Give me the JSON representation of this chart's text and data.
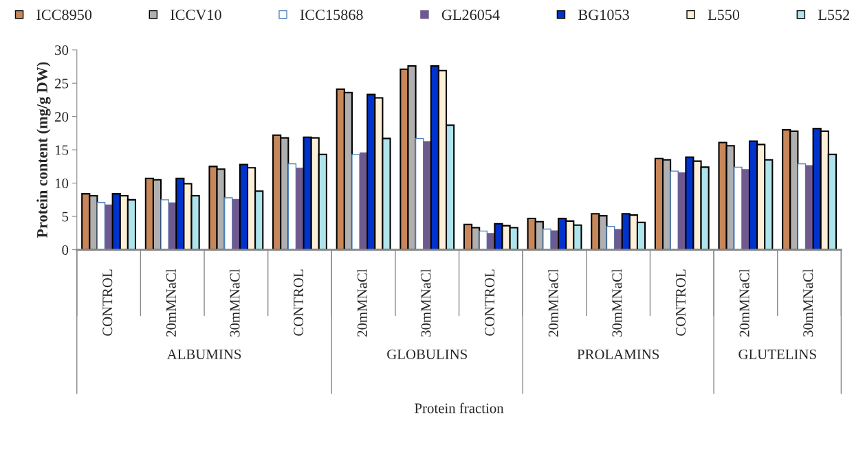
{
  "chart_data": {
    "type": "bar",
    "ylabel": "Protein content (mg/g DW)",
    "categories": [
      "CONTROL",
      "20mMNaCl",
      "30mMNaCl",
      "CONTROL",
      "20mMNaCl",
      "30mMNaCl",
      "CONTROL",
      "20mMNaCl",
      "30mMNaCl",
      "CONTROL",
      "20mMNaCl",
      "30mMNaCl"
    ],
    "series": [
      {
        "name": "ICC8950",
        "color": "#c8875a",
        "values": [
          8.4,
          10.7,
          12.5,
          17.2,
          24.1,
          27.1,
          3.8,
          4.7,
          5.4,
          13.7,
          16.1,
          18.0
        ]
      },
      {
        "name": "ICCV10",
        "color": "#b0b0b0",
        "values": [
          8.1,
          10.5,
          12.1,
          16.8,
          23.6,
          27.6,
          3.3,
          4.2,
          5.1,
          13.5,
          15.6,
          17.8
        ]
      },
      {
        "name": "ICC15868",
        "color": "#ffffff",
        "values": [
          7.1,
          7.5,
          7.8,
          12.9,
          14.3,
          16.7,
          2.8,
          3.1,
          3.5,
          11.8,
          12.4,
          12.9
        ]
      },
      {
        "name": "GL26054",
        "color": "#6f5a8f",
        "values": [
          6.8,
          7.1,
          7.6,
          12.3,
          14.6,
          16.3,
          2.5,
          2.9,
          3.1,
          11.6,
          12.1,
          12.7
        ]
      },
      {
        "name": "BG1053",
        "color": "#0033cc",
        "values": [
          8.4,
          10.7,
          12.8,
          16.9,
          23.3,
          27.6,
          3.9,
          4.7,
          5.4,
          13.9,
          16.3,
          18.2
        ]
      },
      {
        "name": "L550",
        "color": "#fdf0d8",
        "values": [
          8.1,
          9.9,
          12.3,
          16.8,
          22.8,
          26.9,
          3.6,
          4.3,
          5.2,
          13.3,
          15.8,
          17.8
        ]
      },
      {
        "name": "L552",
        "color": "#b0e4ec",
        "values": [
          7.5,
          8.1,
          8.8,
          14.3,
          16.7,
          18.7,
          3.3,
          3.7,
          4.1,
          12.4,
          13.5,
          14.3
        ]
      }
    ],
    "annotations": [
      "ALBUMINS",
      "GLOBULINS",
      "PROLAMINS",
      "GLUTELINS",
      "Protein fraction"
    ],
    "ylim": [
      0,
      30
    ],
    "yticks": [
      0,
      5,
      10,
      15,
      20,
      25,
      30
    ],
    "grid": false,
    "legend": "top"
  }
}
